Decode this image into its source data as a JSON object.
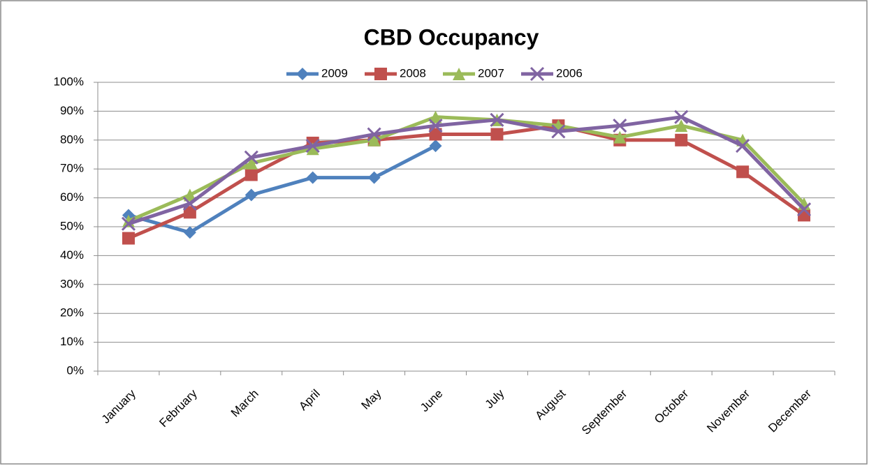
{
  "chart_data": {
    "type": "line",
    "title": "CBD Occupancy",
    "categories": [
      "January",
      "February",
      "March",
      "April",
      "May",
      "June",
      "July",
      "August",
      "September",
      "October",
      "November",
      "December"
    ],
    "series": [
      {
        "name": "2009",
        "color": "#4f81bd",
        "marker": "diamond",
        "values": [
          54,
          48,
          61,
          67,
          67,
          78,
          null,
          null,
          null,
          null,
          null,
          null
        ]
      },
      {
        "name": "2008",
        "color": "#c0504d",
        "marker": "square",
        "values": [
          46,
          55,
          68,
          79,
          80,
          82,
          82,
          85,
          80,
          80,
          69,
          54
        ]
      },
      {
        "name": "2007",
        "color": "#9bbb59",
        "marker": "triangle",
        "values": [
          52,
          61,
          72,
          77,
          80,
          88,
          87,
          85,
          81,
          85,
          80,
          58
        ]
      },
      {
        "name": "2006",
        "color": "#8064a2",
        "marker": "x",
        "values": [
          51,
          58,
          74,
          78,
          82,
          85,
          87,
          83,
          85,
          88,
          78,
          56
        ]
      }
    ],
    "ylim": [
      0,
      100
    ],
    "yticks": [
      {
        "value": 0,
        "label": "0%"
      },
      {
        "value": 10,
        "label": "10%"
      },
      {
        "value": 20,
        "label": "20%"
      },
      {
        "value": 30,
        "label": "30%"
      },
      {
        "value": 40,
        "label": "40%"
      },
      {
        "value": 50,
        "label": "50%"
      },
      {
        "value": 60,
        "label": "60%"
      },
      {
        "value": 70,
        "label": "70%"
      },
      {
        "value": 80,
        "label": "80%"
      },
      {
        "value": 90,
        "label": "90%"
      },
      {
        "value": 100,
        "label": "100%"
      }
    ],
    "grid": true,
    "legend": "top"
  }
}
